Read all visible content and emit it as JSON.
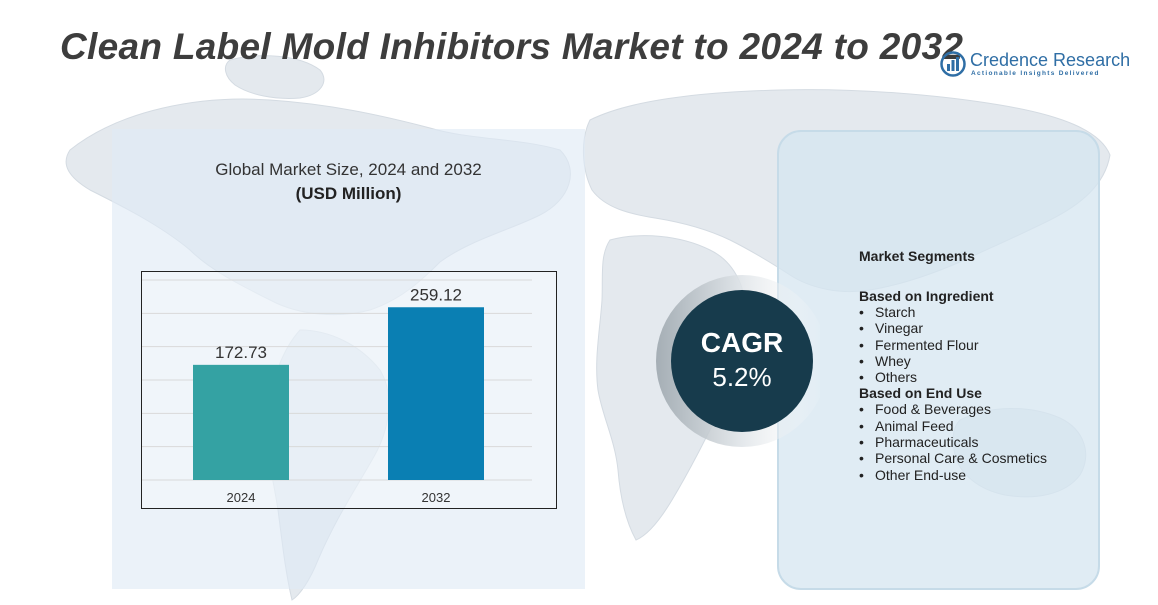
{
  "title": "Clean Label Mold Inhibitors Market to 2024 to 2032",
  "brand": {
    "name": "Credence Research",
    "tagline": "Actionable Insights Delivered",
    "color": "#2f6ea5"
  },
  "chart_data": {
    "type": "bar",
    "title": "Global Market Size,  2024 and 2032",
    "unit": "(USD Million)",
    "categories": [
      "2024",
      "2032"
    ],
    "values": [
      172.73,
      259.12
    ],
    "value_labels": [
      "172.73",
      "259.12"
    ],
    "colors": [
      "#34a2a3",
      "#0a7fb3"
    ],
    "ylim": [
      0,
      300
    ],
    "grid": true,
    "legend": "none"
  },
  "cagr": {
    "label": "CAGR",
    "value": "5.2%",
    "color": "#173b4c"
  },
  "segments": {
    "title": "Market Segments",
    "groups": [
      {
        "title": "Based on Ingredient",
        "items": [
          "Starch",
          "Vinegar",
          "Fermented Flour",
          "Whey",
          "Others"
        ]
      },
      {
        "title": "Based on End Use",
        "items": [
          "Food & Beverages",
          "Animal Feed",
          "Pharmaceuticals",
          "Personal Care & Cosmetics",
          "Other End-use"
        ]
      }
    ]
  }
}
